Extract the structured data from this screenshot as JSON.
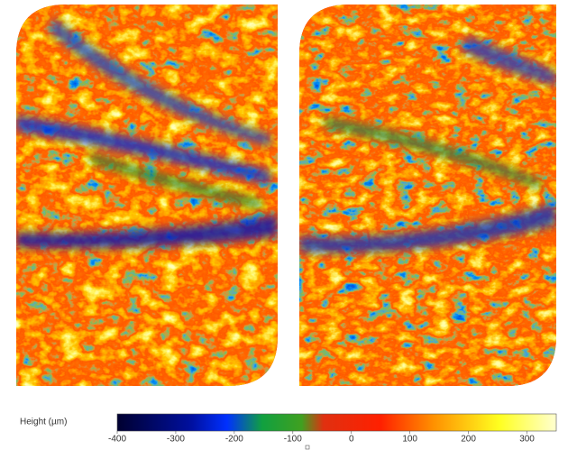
{
  "colorbar": {
    "label": "Height (µm)",
    "lim": [
      -400,
      350
    ],
    "ticks": [
      -400,
      -300,
      -200,
      -100,
      0,
      100,
      200,
      300
    ]
  }
}
